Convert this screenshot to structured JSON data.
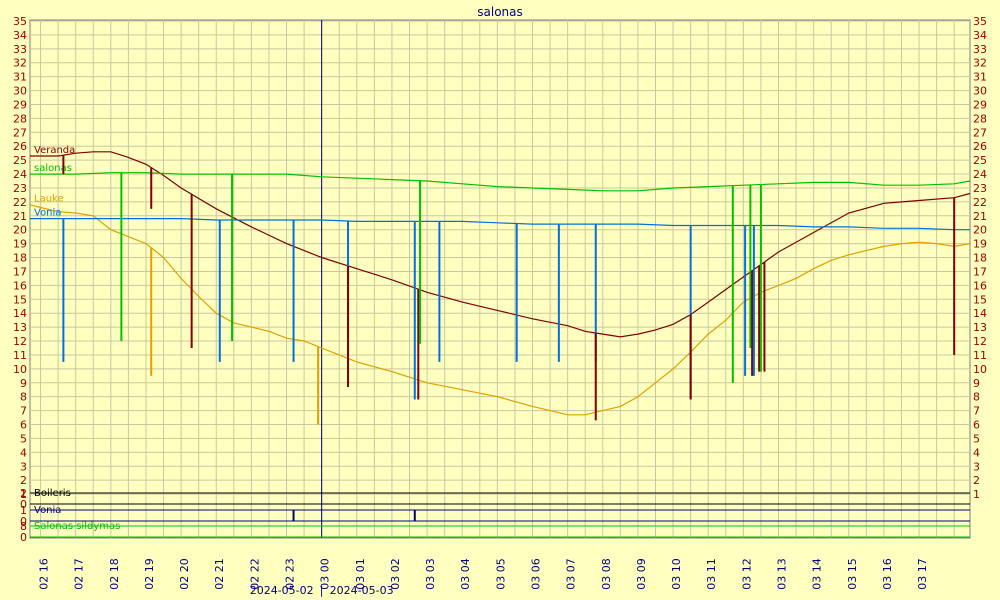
{
  "chart_data": {
    "type": "line",
    "title": "salonas",
    "y_ticks": [
      "1",
      "2",
      "3",
      "4",
      "5",
      "6",
      "7",
      "8",
      "9",
      "10",
      "11",
      "12",
      "13",
      "14",
      "15",
      "16",
      "17",
      "18",
      "19",
      "20",
      "21",
      "22",
      "23",
      "24",
      "25",
      "26",
      "27",
      "28",
      "29",
      "30",
      "31",
      "32",
      "33",
      "34",
      "35"
    ],
    "ylim": [
      0,
      35
    ],
    "x_ticks": [
      "02 16",
      "02 17",
      "02 18",
      "02 19",
      "02 20",
      "02 21",
      "02 22",
      "02 23",
      "03 00",
      "03 01",
      "03 02",
      "03 03",
      "03 04",
      "03 05",
      "03 06",
      "03 07",
      "03 08",
      "03 09",
      "03 10",
      "03 11",
      "03 12",
      "03 13",
      "03 14",
      "03 15",
      "03 16",
      "03 17"
    ],
    "x_range_hours": [
      15.7,
      42.45
    ],
    "date_left": "2024-05-02",
    "date_right": "2024-05-03",
    "date_separator": "|",
    "midnight_hour": 24,
    "grid": true,
    "series": [
      {
        "name": "Veranda",
        "color": "#800000",
        "x": [
          15.7,
          16.5,
          17.0,
          17.5,
          18.0,
          18.5,
          19.0,
          19.5,
          20.0,
          21.0,
          22.0,
          23.0,
          24.0,
          25.0,
          26.0,
          27.0,
          28.0,
          29.0,
          30.0,
          31.0,
          31.5,
          32.0,
          32.5,
          33.0,
          33.5,
          34.0,
          34.5,
          35.0,
          35.5,
          36.0,
          36.5,
          37.0,
          38.0,
          39.0,
          40.0,
          41.0,
          42.0,
          42.45
        ],
        "y": [
          25.3,
          25.3,
          25.5,
          25.6,
          25.6,
          25.2,
          24.7,
          23.9,
          23.0,
          21.5,
          20.2,
          19.0,
          18.0,
          17.2,
          16.4,
          15.5,
          14.8,
          14.2,
          13.6,
          13.1,
          12.7,
          12.5,
          12.3,
          12.5,
          12.8,
          13.2,
          13.9,
          14.8,
          15.7,
          16.6,
          17.5,
          18.4,
          19.8,
          21.2,
          21.9,
          22.1,
          22.3,
          22.6
        ]
      },
      {
        "name": "salonas",
        "color": "#00C000",
        "x": [
          15.7,
          17.0,
          18.0,
          19.0,
          20.0,
          21.0,
          22.0,
          23.0,
          24.0,
          25.0,
          26.0,
          27.0,
          28.0,
          29.0,
          30.0,
          31.0,
          32.0,
          33.0,
          34.0,
          35.0,
          36.0,
          37.0,
          38.0,
          39.0,
          40.0,
          41.0,
          42.0,
          42.45
        ],
        "y": [
          24.0,
          24.0,
          24.1,
          24.1,
          24.0,
          24.0,
          24.0,
          24.0,
          23.8,
          23.7,
          23.6,
          23.5,
          23.3,
          23.1,
          23.0,
          22.9,
          22.8,
          22.8,
          23.0,
          23.1,
          23.2,
          23.3,
          23.4,
          23.4,
          23.2,
          23.2,
          23.3,
          23.5
        ]
      },
      {
        "name": "Lauke",
        "color": "#E0A000",
        "x": [
          15.7,
          16.0,
          16.5,
          17.0,
          17.5,
          18.0,
          18.5,
          19.0,
          19.5,
          20.0,
          20.5,
          21.0,
          21.5,
          22.0,
          22.5,
          23.0,
          23.5,
          24.0,
          24.5,
          25.0,
          26.0,
          27.0,
          28.0,
          29.0,
          30.0,
          30.5,
          31.0,
          31.5,
          32.0,
          32.5,
          33.0,
          33.5,
          34.0,
          34.5,
          35.0,
          35.5,
          36.0,
          36.5,
          37.0,
          37.5,
          38.0,
          38.5,
          39.0,
          39.5,
          40.0,
          40.5,
          41.0,
          41.5,
          42.0,
          42.45
        ],
        "y": [
          21.8,
          21.6,
          21.3,
          21.2,
          21.0,
          20.0,
          19.5,
          19.0,
          18.0,
          16.5,
          15.2,
          14.0,
          13.3,
          13.0,
          12.7,
          12.2,
          12.0,
          11.5,
          11.0,
          10.5,
          9.8,
          9.0,
          8.5,
          8.0,
          7.3,
          7.0,
          6.7,
          6.7,
          7.0,
          7.3,
          8.0,
          9.0,
          10.0,
          11.2,
          12.5,
          13.5,
          14.8,
          15.5,
          16.0,
          16.5,
          17.2,
          17.8,
          18.2,
          18.5,
          18.8,
          19.0,
          19.1,
          19.0,
          18.8,
          19.0
        ]
      },
      {
        "name": "Vonia",
        "color": "#0070E0",
        "x": [
          15.7,
          17.0,
          18.0,
          19.0,
          20.0,
          21.0,
          22.0,
          23.0,
          24.0,
          25.0,
          26.0,
          27.0,
          28.0,
          29.0,
          30.0,
          31.0,
          32.0,
          33.0,
          34.0,
          35.0,
          36.0,
          37.0,
          38.0,
          39.0,
          40.0,
          41.0,
          42.0,
          42.45
        ],
        "y": [
          20.8,
          20.8,
          20.8,
          20.8,
          20.8,
          20.7,
          20.7,
          20.7,
          20.7,
          20.6,
          20.6,
          20.6,
          20.6,
          20.5,
          20.4,
          20.4,
          20.4,
          20.4,
          20.3,
          20.3,
          20.3,
          20.3,
          20.2,
          20.2,
          20.1,
          20.1,
          20.0,
          20.0
        ]
      }
    ],
    "spikes": [
      {
        "series": "Vonia",
        "x": 16.65,
        "to": 10.5
      },
      {
        "series": "Veranda",
        "x": 16.65,
        "to": 24.0
      },
      {
        "series": "salonas",
        "x": 18.3,
        "to": 12.0
      },
      {
        "series": "Lauke",
        "x": 19.15,
        "to": 9.5
      },
      {
        "series": "Veranda",
        "x": 19.15,
        "to": 21.5
      },
      {
        "series": "Veranda",
        "x": 20.3,
        "to": 11.5
      },
      {
        "series": "Vonia",
        "x": 21.1,
        "to": 10.5
      },
      {
        "series": "salonas",
        "x": 21.45,
        "to": 12.0
      },
      {
        "series": "Vonia",
        "x": 23.2,
        "to": 10.5
      },
      {
        "series": "Lauke",
        "x": 23.9,
        "to": 6.0
      },
      {
        "series": "Vonia",
        "x": 24.75,
        "to": 10.5
      },
      {
        "series": "Veranda",
        "x": 24.75,
        "to": 8.7
      },
      {
        "series": "Vonia",
        "x": 26.65,
        "to": 7.8
      },
      {
        "series": "Veranda",
        "x": 26.75,
        "to": 7.8
      },
      {
        "series": "salonas",
        "x": 26.8,
        "to": 11.8
      },
      {
        "series": "Vonia",
        "x": 27.35,
        "to": 10.5
      },
      {
        "series": "Vonia",
        "x": 29.55,
        "to": 10.5
      },
      {
        "series": "Vonia",
        "x": 30.75,
        "to": 10.5
      },
      {
        "series": "Vonia",
        "x": 31.8,
        "to": 10.5
      },
      {
        "series": "Veranda",
        "x": 31.8,
        "to": 6.3
      },
      {
        "series": "Vonia",
        "x": 34.5,
        "to": 7.8
      },
      {
        "series": "Veranda",
        "x": 34.5,
        "to": 7.8
      },
      {
        "series": "salonas",
        "x": 35.7,
        "to": 9.0
      },
      {
        "series": "Vonia",
        "x": 36.05,
        "to": 9.5
      },
      {
        "series": "salonas",
        "x": 36.2,
        "to": 11.5
      },
      {
        "series": "Veranda",
        "x": 36.25,
        "to": 9.5
      },
      {
        "series": "Vonia",
        "x": 36.3,
        "to": 9.5
      },
      {
        "series": "Veranda",
        "x": 36.45,
        "to": 9.8
      },
      {
        "series": "salonas",
        "x": 36.5,
        "to": 9.8
      },
      {
        "series": "Veranda",
        "x": 36.6,
        "to": 9.8
      },
      {
        "series": "Veranda",
        "x": 42.0,
        "to": 11.0
      }
    ],
    "lanes": [
      {
        "name": "Boileris",
        "color": "#000000",
        "lo_label": "0",
        "hi_label": "2"
      },
      {
        "name": "Vonia",
        "color": "#000080",
        "lo_label": "0",
        "hi_label": "1"
      },
      {
        "name": "Salonas sildymas",
        "color": "#00C000",
        "lo_label": "0",
        "hi_label": "8"
      }
    ],
    "lane_blips": [
      {
        "x": 23.2,
        "lane": "Vonia"
      },
      {
        "x": 26.65,
        "lane": "Vonia"
      }
    ]
  }
}
